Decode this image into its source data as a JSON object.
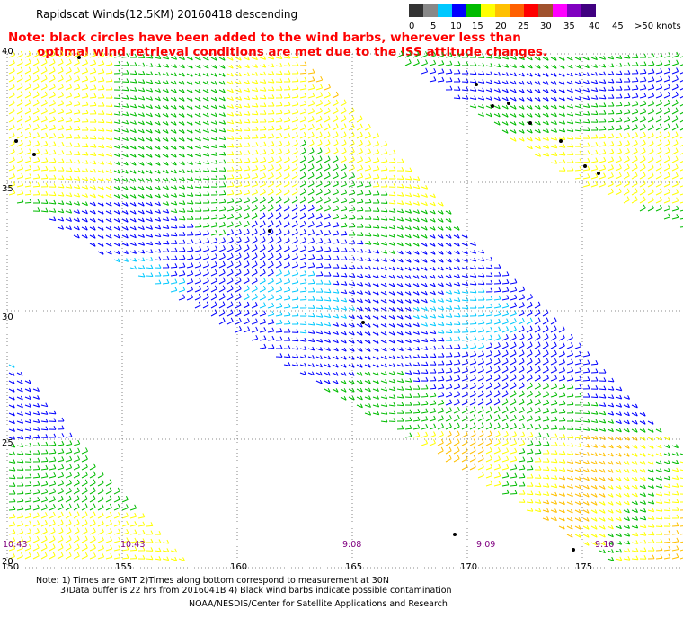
{
  "title": "Rapidscat Winds(12.5KM) 20160418 descending",
  "note_line1": "Note: black circles have been added to the wind barbs, wherever less than",
  "note_line2": "optimal wind retrieval conditions are met due to the ISS attitude changes.",
  "legend": {
    "labels": [
      "0",
      "5",
      "10",
      "15",
      "20",
      "25",
      "30",
      "35",
      "40",
      "45",
      ">50 knots"
    ],
    "colors": [
      "#333333",
      "#888888",
      "#00c8ff",
      "#0000ff",
      "#00bb00",
      "#ffff00",
      "#ffc000",
      "#ff6000",
      "#ff0000",
      "#a0522d",
      "#ff00ff",
      "#8000c0",
      "#400080"
    ]
  },
  "lat_labels": [
    "40",
    "35",
    "30",
    "25",
    "20"
  ],
  "lon_labels": [
    "150",
    "155",
    "160",
    "165",
    "170",
    "175"
  ],
  "time_labels": [
    "10:43",
    "10:43",
    "9:08",
    "9:09",
    "9:10"
  ],
  "footer_line1": "Note: 1) Times are GMT 2)Times along bottom correspond to measurement at 30N",
  "footer_line2": "3)Data buffer is 22 hrs from 2016041B 4) Black wind barbs indicate possible contamination",
  "footer_line3": "NOAA/NESDIS/Center for Satellite Applications and Research",
  "map_extent": {
    "lon": [
      150,
      180
    ],
    "lat": [
      20,
      40
    ]
  }
}
